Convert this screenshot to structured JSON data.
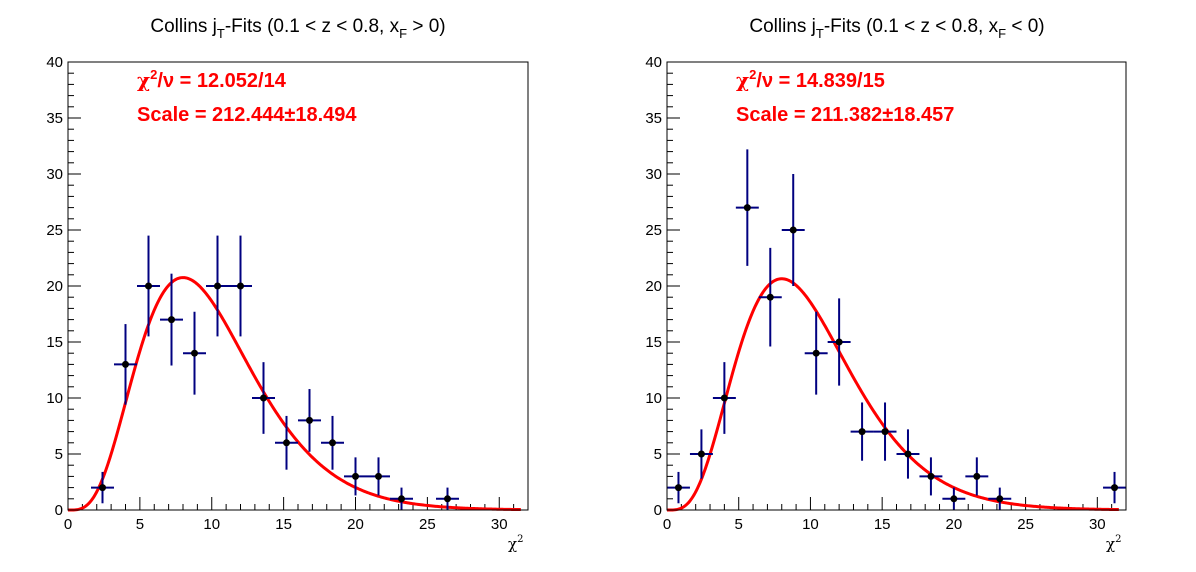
{
  "colors": {
    "background": "#ffffff",
    "frame": "#000000",
    "data_points": "#000000",
    "error_bars": "#000080",
    "fit_curve": "#ff0000",
    "annotation": "#ff0000"
  },
  "chart_data": [
    {
      "type": "scatter",
      "title": {
        "main": "Collins j",
        "sub1": "T",
        "mid": "-Fits (0.1 < z < 0.8, x",
        "sub2": "F",
        "end": " > 0)"
      },
      "xlabel": {
        "base": "χ",
        "sup": "2"
      },
      "xlim": [
        0,
        32
      ],
      "ylim": [
        0,
        40
      ],
      "xticks": [
        0,
        5,
        10,
        15,
        20,
        25,
        30
      ],
      "yticks": [
        0,
        5,
        10,
        15,
        20,
        25,
        30,
        35,
        40
      ],
      "bin_half_width": 0.8,
      "points": [
        {
          "x": 2.4,
          "y": 2,
          "err": 1.4
        },
        {
          "x": 4.0,
          "y": 13,
          "err": 3.6
        },
        {
          "x": 5.6,
          "y": 20,
          "err": 4.5
        },
        {
          "x": 7.2,
          "y": 17,
          "err": 4.1
        },
        {
          "x": 8.8,
          "y": 14,
          "err": 3.7
        },
        {
          "x": 10.4,
          "y": 20,
          "err": 4.5
        },
        {
          "x": 12.0,
          "y": 20,
          "err": 4.5
        },
        {
          "x": 13.6,
          "y": 10,
          "err": 3.2
        },
        {
          "x": 15.2,
          "y": 6,
          "err": 2.4
        },
        {
          "x": 16.8,
          "y": 8,
          "err": 2.8
        },
        {
          "x": 18.4,
          "y": 6,
          "err": 2.4
        },
        {
          "x": 20.0,
          "y": 3,
          "err": 1.7
        },
        {
          "x": 21.6,
          "y": 3,
          "err": 1.7
        },
        {
          "x": 23.2,
          "y": 1,
          "err": 1.0
        },
        {
          "x": 26.4,
          "y": 1,
          "err": 1.0
        }
      ],
      "fit": {
        "function": "scaled chi-square pdf",
        "ndf": 10,
        "scale": 212.444,
        "xmax": 31.5
      },
      "annotations": {
        "chi2_sym": "χ",
        "chi2_sup": "2",
        "chi2_rest": "/ν = 12.052/14",
        "scale_text": "Scale = 212.444±18.494"
      }
    },
    {
      "type": "scatter",
      "title": {
        "main": "Collins j",
        "sub1": "T",
        "mid": "-Fits (0.1 < z < 0.8, x",
        "sub2": "F",
        "end": " < 0)"
      },
      "xlabel": {
        "base": "χ",
        "sup": "2"
      },
      "xlim": [
        0,
        32
      ],
      "ylim": [
        0,
        40
      ],
      "xticks": [
        0,
        5,
        10,
        15,
        20,
        25,
        30
      ],
      "yticks": [
        0,
        5,
        10,
        15,
        20,
        25,
        30,
        35,
        40
      ],
      "bin_half_width": 0.8,
      "points": [
        {
          "x": 0.8,
          "y": 2,
          "err": 1.4
        },
        {
          "x": 2.4,
          "y": 5,
          "err": 2.2
        },
        {
          "x": 4.0,
          "y": 10,
          "err": 3.2
        },
        {
          "x": 5.6,
          "y": 27,
          "err": 5.2
        },
        {
          "x": 7.2,
          "y": 19,
          "err": 4.4
        },
        {
          "x": 8.8,
          "y": 25,
          "err": 5.0
        },
        {
          "x": 10.4,
          "y": 14,
          "err": 3.7
        },
        {
          "x": 12.0,
          "y": 15,
          "err": 3.9
        },
        {
          "x": 13.6,
          "y": 7,
          "err": 2.6
        },
        {
          "x": 15.2,
          "y": 7,
          "err": 2.6
        },
        {
          "x": 16.8,
          "y": 5,
          "err": 2.2
        },
        {
          "x": 18.4,
          "y": 3,
          "err": 1.7
        },
        {
          "x": 20.0,
          "y": 1,
          "err": 1.0
        },
        {
          "x": 21.6,
          "y": 3,
          "err": 1.7
        },
        {
          "x": 23.2,
          "y": 1,
          "err": 1.0
        },
        {
          "x": 31.2,
          "y": 2,
          "err": 1.4
        }
      ],
      "fit": {
        "function": "scaled chi-square pdf",
        "ndf": 10,
        "scale": 211.382,
        "xmax": 31.5
      },
      "annotations": {
        "chi2_sym": "χ",
        "chi2_sup": "2",
        "chi2_rest": "/ν = 14.839/15",
        "scale_text": "Scale = 211.382±18.457"
      }
    }
  ]
}
